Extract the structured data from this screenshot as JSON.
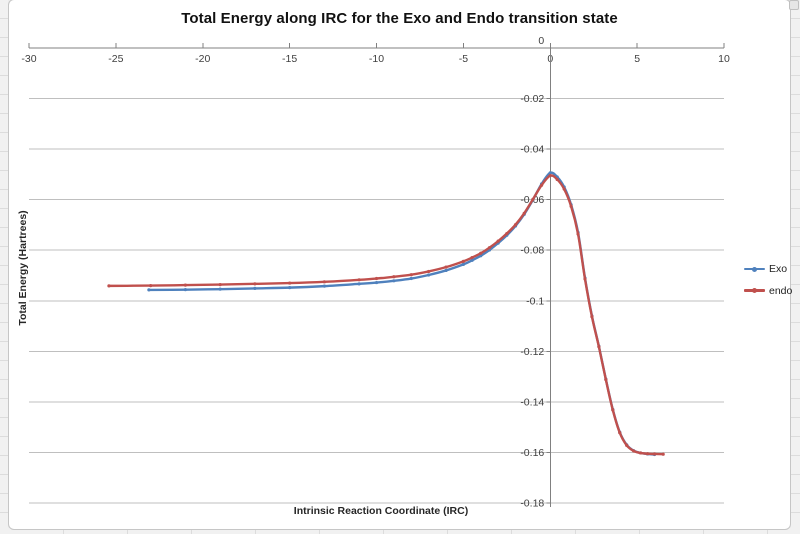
{
  "window": {
    "background_color": "#ededed",
    "chart_border_color": "#c6c6c6"
  },
  "chart": {
    "title": "Total Energy along IRC for the Exo and Endo transition state",
    "x_axis_title": "Intrinsic Reaction Coordinate (IRC)",
    "y_axis_title": "Total Energy (Hartrees)",
    "legend": [
      {
        "label": "Exo",
        "color": "#4F81BD"
      },
      {
        "label": "endo",
        "color": "#C0504D"
      }
    ]
  },
  "colors": {
    "gridline": "#BFBFBF",
    "axis_line": "#808080",
    "tick_label": "#3f3f3f",
    "exo_series": "#4F81BD",
    "endo_series": "#C0504D"
  },
  "chart_data": {
    "type": "line",
    "title": "Total Energy along IRC for the Exo and Endo transition state",
    "xlabel": "Intrinsic Reaction Coordinate (IRC)",
    "ylabel": "Total Energy (Hartrees)",
    "xlim": [
      -30,
      10
    ],
    "ylim": [
      -0.18,
      0
    ],
    "grid": "horizontal",
    "legend_position": "right",
    "x_ticks": [
      {
        "value": -30,
        "label": "-30"
      },
      {
        "value": -25,
        "label": "-25"
      },
      {
        "value": -20,
        "label": "-20"
      },
      {
        "value": -15,
        "label": "-15"
      },
      {
        "value": -10,
        "label": "-10"
      },
      {
        "value": -5,
        "label": "-5"
      },
      {
        "value": 0,
        "label": "0"
      },
      {
        "value": 5,
        "label": "5"
      },
      {
        "value": 10,
        "label": "10"
      }
    ],
    "y_ticks": [
      {
        "value": 0,
        "label": "0"
      },
      {
        "value": -0.02,
        "label": "-0.02"
      },
      {
        "value": -0.04,
        "label": "-0.04"
      },
      {
        "value": -0.06,
        "label": "-0.06"
      },
      {
        "value": -0.08,
        "label": "-0.08"
      },
      {
        "value": -0.1,
        "label": "-0.1"
      },
      {
        "value": -0.12,
        "label": "-0.12"
      },
      {
        "value": -0.14,
        "label": "-0.14"
      },
      {
        "value": -0.16,
        "label": "-0.16"
      },
      {
        "value": -0.18,
        "label": "-0.18"
      }
    ],
    "series": [
      {
        "name": "Exo",
        "color": "#4F81BD",
        "points": [
          [
            -23.1,
            -0.0957
          ],
          [
            -21,
            -0.0956
          ],
          [
            -19,
            -0.0954
          ],
          [
            -17,
            -0.0951
          ],
          [
            -15,
            -0.0948
          ],
          [
            -13,
            -0.0942
          ],
          [
            -11,
            -0.0933
          ],
          [
            -10,
            -0.0928
          ],
          [
            -9,
            -0.0921
          ],
          [
            -8,
            -0.0912
          ],
          [
            -7,
            -0.0898
          ],
          [
            -6,
            -0.088
          ],
          [
            -5,
            -0.0856
          ],
          [
            -4.5,
            -0.084
          ],
          [
            -4,
            -0.0822
          ],
          [
            -3.5,
            -0.0799
          ],
          [
            -3,
            -0.0772
          ],
          [
            -2.5,
            -0.0741
          ],
          [
            -2,
            -0.0704
          ],
          [
            -1.5,
            -0.0658
          ],
          [
            -1,
            -0.0601
          ],
          [
            -0.5,
            -0.0538
          ],
          [
            0,
            -0.0494
          ],
          [
            0.4,
            -0.051
          ],
          [
            0.8,
            -0.055
          ],
          [
            1.2,
            -0.062
          ],
          [
            1.6,
            -0.073
          ],
          [
            2,
            -0.091
          ],
          [
            2.4,
            -0.106
          ],
          [
            2.8,
            -0.118
          ],
          [
            3.2,
            -0.131
          ],
          [
            3.6,
            -0.143
          ],
          [
            4,
            -0.152
          ],
          [
            4.4,
            -0.157
          ],
          [
            4.8,
            -0.1593
          ],
          [
            5.2,
            -0.1602
          ],
          [
            5.6,
            -0.1606
          ],
          [
            6,
            -0.1608
          ]
        ]
      },
      {
        "name": "endo",
        "color": "#C0504D",
        "points": [
          [
            -25.4,
            -0.0941
          ],
          [
            -23,
            -0.094
          ],
          [
            -21,
            -0.0938
          ],
          [
            -19,
            -0.0936
          ],
          [
            -17,
            -0.0933
          ],
          [
            -15,
            -0.093
          ],
          [
            -13,
            -0.0925
          ],
          [
            -11,
            -0.0917
          ],
          [
            -10,
            -0.0912
          ],
          [
            -9,
            -0.0905
          ],
          [
            -8,
            -0.0897
          ],
          [
            -7,
            -0.0884
          ],
          [
            -6,
            -0.0867
          ],
          [
            -5,
            -0.0844
          ],
          [
            -4.5,
            -0.0829
          ],
          [
            -4,
            -0.0812
          ],
          [
            -3.5,
            -0.079
          ],
          [
            -3,
            -0.0764
          ],
          [
            -2.5,
            -0.0734
          ],
          [
            -2,
            -0.0699
          ],
          [
            -1.5,
            -0.0654
          ],
          [
            -1,
            -0.0599
          ],
          [
            -0.5,
            -0.0543
          ],
          [
            0,
            -0.0505
          ],
          [
            0.4,
            -0.052
          ],
          [
            0.8,
            -0.0558
          ],
          [
            1.2,
            -0.0626
          ],
          [
            1.6,
            -0.0736
          ],
          [
            2,
            -0.0914
          ],
          [
            2.4,
            -0.1063
          ],
          [
            2.8,
            -0.1182
          ],
          [
            3.2,
            -0.1312
          ],
          [
            3.6,
            -0.1432
          ],
          [
            4,
            -0.1522
          ],
          [
            4.4,
            -0.1572
          ],
          [
            4.8,
            -0.1594
          ],
          [
            5.2,
            -0.1602
          ],
          [
            5.6,
            -0.1605
          ],
          [
            6,
            -0.1606
          ],
          [
            6.5,
            -0.1607
          ]
        ]
      }
    ]
  }
}
